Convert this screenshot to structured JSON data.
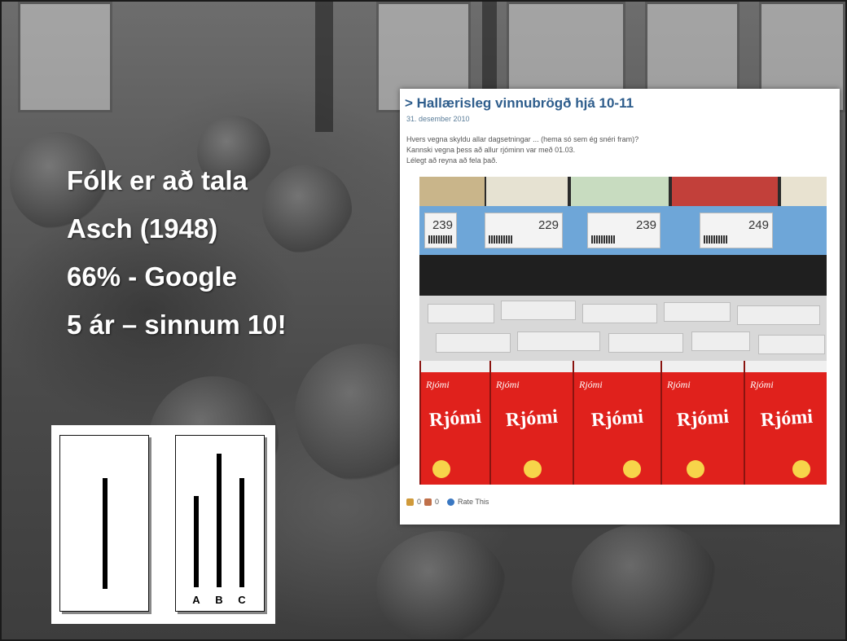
{
  "bullets": [
    "Fólk er að tala",
    "Asch (1948)",
    "66% - Google",
    "5 ár – sinnum 10!"
  ],
  "blog": {
    "title": "> Hallærisleg vinnubrögð hjá 10-11",
    "date": "31. desember 2010",
    "body_lines": [
      "Hvers vegna skyldu allar dagsetningar ... (hema só sem ég snéri fram)?",
      "Kannski vegna þess að allur rjóminn var með 01.03.",
      "Lélegt að reyna að fela það."
    ],
    "photo": {
      "prices": [
        "239",
        "229",
        "239",
        "249"
      ],
      "carton_brand": "Rjómi"
    },
    "footer": {
      "likes": "0",
      "dislikes": "0",
      "rate_label": "Rate This"
    }
  },
  "asch": {
    "labels": [
      "A",
      "B",
      "C"
    ]
  }
}
